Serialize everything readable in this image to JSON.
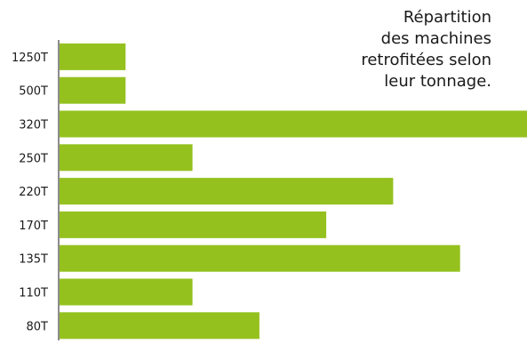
{
  "chart_data": {
    "type": "bar",
    "orientation": "horizontal",
    "title_lines": [
      "Répartition",
      "des machines",
      "retrofitées selon",
      "leur tonnage."
    ],
    "categories": [
      "1250T",
      "500T",
      "320T",
      "250T",
      "220T",
      "170T",
      "135T",
      "110T",
      "80T"
    ],
    "values": [
      1,
      1,
      7,
      2,
      5,
      4,
      6,
      2,
      3
    ],
    "xlim": [
      0,
      7
    ],
    "grid": false,
    "bar_color": "#95c11f",
    "axis_color": "#1a1a1a",
    "text_color": "#1a1a1a",
    "legend": "none"
  }
}
